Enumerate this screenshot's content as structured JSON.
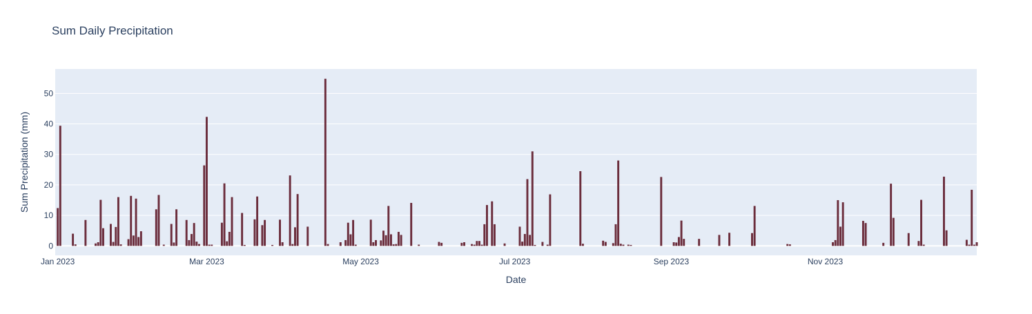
{
  "chart_data": {
    "type": "bar",
    "title": "Sum Daily Precipitation",
    "xlabel": "Date",
    "ylabel": "Sum Precipitation (mm)",
    "ylim": [
      -3.1,
      58
    ],
    "yticks": [
      0,
      10,
      20,
      30,
      40,
      50
    ],
    "xrange": [
      "2022-12-31",
      "2023-12-31"
    ],
    "xticks": [
      {
        "date": "2023-01-01",
        "label": "Jan 2023"
      },
      {
        "date": "2023-03-01",
        "label": "Mar 2023"
      },
      {
        "date": "2023-05-01",
        "label": "May 2023"
      },
      {
        "date": "2023-07-01",
        "label": "Jul 2023"
      },
      {
        "date": "2023-09-01",
        "label": "Sep 2023"
      },
      {
        "date": "2023-11-01",
        "label": "Nov 2023"
      }
    ],
    "grid": true,
    "legend": "none",
    "colors": {
      "bar": "#6b2d3c",
      "plot_bg": "#e5ecf6",
      "grid": "#ffffff",
      "text": "#2a3f5f"
    },
    "series": [
      {
        "name": "Sum Precipitation (mm)",
        "x": [
          "2023-01-01",
          "2023-01-02",
          "2023-01-07",
          "2023-01-08",
          "2023-01-12",
          "2023-01-16",
          "2023-01-17",
          "2023-01-18",
          "2023-01-19",
          "2023-01-22",
          "2023-01-23",
          "2023-01-24",
          "2023-01-25",
          "2023-01-26",
          "2023-01-29",
          "2023-01-30",
          "2023-01-31",
          "2023-02-01",
          "2023-02-02",
          "2023-02-03",
          "2023-02-09",
          "2023-02-10",
          "2023-02-12",
          "2023-02-15",
          "2023-02-16",
          "2023-02-17",
          "2023-02-21",
          "2023-02-22",
          "2023-02-23",
          "2023-02-24",
          "2023-02-25",
          "2023-02-26",
          "2023-02-28",
          "2023-03-01",
          "2023-03-02",
          "2023-03-03",
          "2023-03-07",
          "2023-03-08",
          "2023-03-09",
          "2023-03-10",
          "2023-03-11",
          "2023-03-15",
          "2023-03-16",
          "2023-03-20",
          "2023-03-21",
          "2023-03-23",
          "2023-03-24",
          "2023-03-27",
          "2023-03-30",
          "2023-03-31",
          "2023-04-03",
          "2023-04-04",
          "2023-04-05",
          "2023-04-06",
          "2023-04-10",
          "2023-04-17",
          "2023-04-18",
          "2023-04-23",
          "2023-04-25",
          "2023-04-26",
          "2023-04-27",
          "2023-04-28",
          "2023-04-29",
          "2023-05-05",
          "2023-05-06",
          "2023-05-07",
          "2023-05-09",
          "2023-05-10",
          "2023-05-11",
          "2023-05-12",
          "2023-05-13",
          "2023-05-14",
          "2023-05-15",
          "2023-05-16",
          "2023-05-17",
          "2023-05-21",
          "2023-05-24",
          "2023-06-01",
          "2023-06-02",
          "2023-06-10",
          "2023-06-11",
          "2023-06-14",
          "2023-06-15",
          "2023-06-16",
          "2023-06-17",
          "2023-06-18",
          "2023-06-19",
          "2023-06-20",
          "2023-06-22",
          "2023-06-23",
          "2023-06-27",
          "2023-07-03",
          "2023-07-04",
          "2023-07-05",
          "2023-07-06",
          "2023-07-07",
          "2023-07-08",
          "2023-07-09",
          "2023-07-12",
          "2023-07-14",
          "2023-07-15",
          "2023-07-27",
          "2023-07-28",
          "2023-08-05",
          "2023-08-06",
          "2023-08-09",
          "2023-08-10",
          "2023-08-11",
          "2023-08-12",
          "2023-08-13",
          "2023-08-15",
          "2023-08-16",
          "2023-08-28",
          "2023-09-02",
          "2023-09-03",
          "2023-09-04",
          "2023-09-05",
          "2023-09-06",
          "2023-09-12",
          "2023-09-20",
          "2023-09-24",
          "2023-10-03",
          "2023-10-04",
          "2023-10-17",
          "2023-10-18",
          "2023-11-04",
          "2023-11-05",
          "2023-11-06",
          "2023-11-07",
          "2023-11-08",
          "2023-11-16",
          "2023-11-17",
          "2023-11-24",
          "2023-11-27",
          "2023-11-28",
          "2023-12-04",
          "2023-12-08",
          "2023-12-09",
          "2023-12-10",
          "2023-12-18",
          "2023-12-19",
          "2023-12-27",
          "2023-12-28",
          "2023-12-29",
          "2023-12-30",
          "2023-12-31"
        ],
        "values": [
          12.4,
          39.4,
          4.0,
          0.5,
          8.5,
          0.8,
          1.2,
          15.1,
          5.8,
          7.2,
          1.3,
          6.2,
          16.0,
          0.5,
          2.2,
          16.4,
          3.4,
          15.5,
          2.9,
          4.8,
          12.0,
          16.7,
          0.4,
          7.2,
          1.1,
          12.0,
          8.5,
          1.9,
          3.9,
          7.5,
          1.4,
          0.6,
          26.4,
          42.3,
          0.4,
          0.4,
          7.6,
          20.5,
          1.5,
          4.6,
          16.0,
          10.8,
          0.3,
          8.7,
          16.2,
          6.8,
          8.5,
          0.3,
          8.6,
          1.2,
          23.1,
          0.6,
          6.1,
          17.0,
          6.3,
          54.8,
          0.6,
          1.2,
          1.9,
          7.6,
          3.8,
          8.5,
          0.4,
          8.6,
          1.2,
          1.9,
          1.8,
          5.0,
          3.5,
          13.1,
          3.8,
          0.5,
          0.6,
          4.6,
          3.6,
          14.1,
          0.4,
          1.3,
          1.0,
          1.0,
          1.2,
          0.6,
          0.4,
          1.6,
          1.6,
          0.4,
          7.1,
          13.4,
          14.6,
          7.1,
          0.8,
          6.3,
          1.4,
          3.9,
          21.9,
          3.6,
          31.0,
          0.3,
          1.3,
          0.4,
          16.9,
          24.5,
          0.7,
          1.7,
          1.3,
          0.9,
          7.1,
          28.0,
          0.7,
          0.4,
          0.4,
          0.3,
          22.6,
          1.2,
          1.1,
          2.9,
          8.3,
          2.3,
          2.3,
          3.6,
          4.3,
          4.2,
          13.1,
          0.6,
          0.5,
          1.2,
          1.9,
          15.0,
          6.3,
          14.3,
          8.2,
          7.5,
          1.0,
          20.4,
          9.2,
          4.2,
          1.6,
          15.1,
          0.4,
          22.7,
          5.1,
          2.0,
          0.4,
          18.4,
          0.4,
          1.2
        ]
      }
    ]
  }
}
